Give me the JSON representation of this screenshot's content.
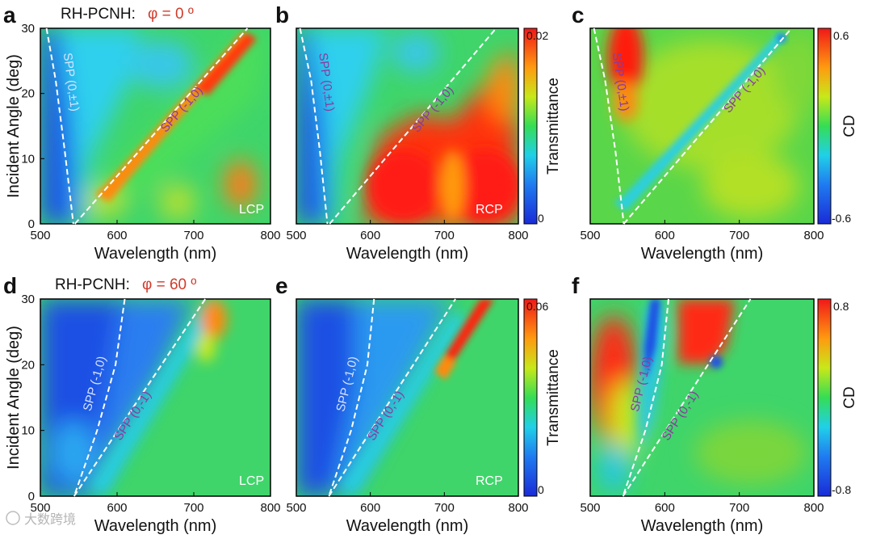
{
  "figure": {
    "rows": [
      {
        "label": "RH-PCNH:",
        "phi": "φ = 0 º"
      },
      {
        "label": "RH-PCNH:",
        "phi": "φ = 60 º"
      }
    ],
    "watermark": "大数跨境"
  },
  "colors": {
    "phi_text": "#d23a2a",
    "spp_line": "#ffffff",
    "spp_light_text": "#d9e3ff",
    "spp_dark_text": "#8a3aa0"
  },
  "chart_data": [
    {
      "id": "a",
      "panel_letter": "a",
      "type": "heatmap",
      "quantity": "Transmittance",
      "polarization_label": "LCP",
      "xlabel": "Wavelength (nm)",
      "ylabel": "Incident Angle (deg)",
      "xlim": [
        500,
        800
      ],
      "ylim": [
        0,
        30
      ],
      "xticks": [
        "500",
        "600",
        "700",
        "800"
      ],
      "yticks": [
        "0",
        "10",
        "20",
        "30"
      ],
      "spp": [
        {
          "label": "SPP (0,±1)",
          "pts": [
            [
              508,
              30
            ],
            [
              520,
              22
            ],
            [
              532,
              11
            ],
            [
              543,
              0
            ]
          ]
        },
        {
          "label": "SPP (-1,0)",
          "pts": [
            [
              545,
              0
            ],
            [
              770,
              30
            ]
          ]
        }
      ]
    },
    {
      "id": "b",
      "panel_letter": "b",
      "type": "heatmap",
      "quantity": "Transmittance",
      "polarization_label": "RCP",
      "xlabel": "Wavelength (nm)",
      "ylabel": "",
      "xlim": [
        500,
        800
      ],
      "ylim": [
        0,
        30
      ],
      "xticks": [
        "500",
        "600",
        "700",
        "800"
      ],
      "yticks": [],
      "colorbar": {
        "label": "Transmittance",
        "ticks": [
          "0.02",
          "0"
        ],
        "range": [
          0,
          0.02
        ]
      },
      "spp": [
        {
          "label": "SPP (0,±1)",
          "pts": [
            [
              505,
              30
            ],
            [
              520,
              22
            ],
            [
              532,
              11
            ],
            [
              542,
              0
            ]
          ]
        },
        {
          "label": "SPP (-1,0)",
          "pts": [
            [
              545,
              0
            ],
            [
              770,
              30
            ]
          ]
        }
      ]
    },
    {
      "id": "c",
      "panel_letter": "c",
      "type": "heatmap",
      "quantity": "CD",
      "polarization_label": "",
      "xlabel": "Wavelength (nm)",
      "ylabel": "",
      "xlim": [
        500,
        800
      ],
      "ylim": [
        0,
        30
      ],
      "xticks": [
        "500",
        "600",
        "700",
        "800"
      ],
      "yticks": [],
      "colorbar": {
        "label": "CD",
        "ticks": [
          "0.6",
          "-0.6"
        ],
        "range": [
          -0.6,
          0.6
        ]
      },
      "spp": [
        {
          "label": "SPP (0,±1)",
          "pts": [
            [
              505,
              30
            ],
            [
              520,
              22
            ],
            [
              534,
              11
            ],
            [
              545,
              0
            ]
          ]
        },
        {
          "label": "SPP (-1,0)",
          "pts": [
            [
              545,
              0
            ],
            [
              770,
              30
            ]
          ]
        }
      ]
    },
    {
      "id": "d",
      "panel_letter": "d",
      "type": "heatmap",
      "quantity": "Transmittance",
      "polarization_label": "LCP",
      "xlabel": "Wavelength (nm)",
      "ylabel": "Incident Angle (deg)",
      "xlim": [
        500,
        800
      ],
      "ylim": [
        0,
        30
      ],
      "xticks": [
        "500",
        "600",
        "700",
        "800"
      ],
      "yticks": [
        "0",
        "10",
        "20",
        "30"
      ],
      "spp": [
        {
          "label": "SPP (-1,0)",
          "pts": [
            [
              610,
              30
            ],
            [
              598,
              20
            ],
            [
              574,
              10
            ],
            [
              544,
              0
            ]
          ]
        },
        {
          "label": "SPP (0,-1)",
          "pts": [
            [
              544,
              0
            ],
            [
              715,
              30
            ]
          ]
        }
      ]
    },
    {
      "id": "e",
      "panel_letter": "e",
      "type": "heatmap",
      "quantity": "Transmittance",
      "polarization_label": "RCP",
      "xlabel": "Wavelength (nm)",
      "ylabel": "",
      "xlim": [
        500,
        800
      ],
      "ylim": [
        0,
        30
      ],
      "xticks": [
        "500",
        "600",
        "700",
        "800"
      ],
      "yticks": [],
      "colorbar": {
        "label": "Transmittance",
        "ticks": [
          "0.06",
          "0"
        ],
        "range": [
          0,
          0.06
        ]
      },
      "spp": [
        {
          "label": "SPP (-1,0)",
          "pts": [
            [
              605,
              30
            ],
            [
              596,
              20
            ],
            [
              574,
              10
            ],
            [
              544,
              0
            ]
          ]
        },
        {
          "label": "SPP (0,-1)",
          "pts": [
            [
              544,
              0
            ],
            [
              715,
              30
            ]
          ]
        }
      ]
    },
    {
      "id": "f",
      "panel_letter": "f",
      "type": "heatmap",
      "quantity": "CD",
      "polarization_label": "",
      "xlabel": "Wavelength (nm)",
      "ylabel": "",
      "xlim": [
        500,
        800
      ],
      "ylim": [
        0,
        30
      ],
      "xticks": [
        "500",
        "600",
        "700",
        "800"
      ],
      "yticks": [],
      "colorbar": {
        "label": "CD",
        "ticks": [
          "0.8",
          "-0.8"
        ],
        "range": [
          -0.8,
          0.8
        ]
      },
      "spp": [
        {
          "label": "SPP (-1,0)",
          "pts": [
            [
              605,
              30
            ],
            [
              596,
              20
            ],
            [
              574,
              10
            ],
            [
              544,
              0
            ]
          ]
        },
        {
          "label": "SPP (0,-1)",
          "pts": [
            [
              544,
              0
            ],
            [
              715,
              30
            ]
          ]
        }
      ]
    }
  ]
}
